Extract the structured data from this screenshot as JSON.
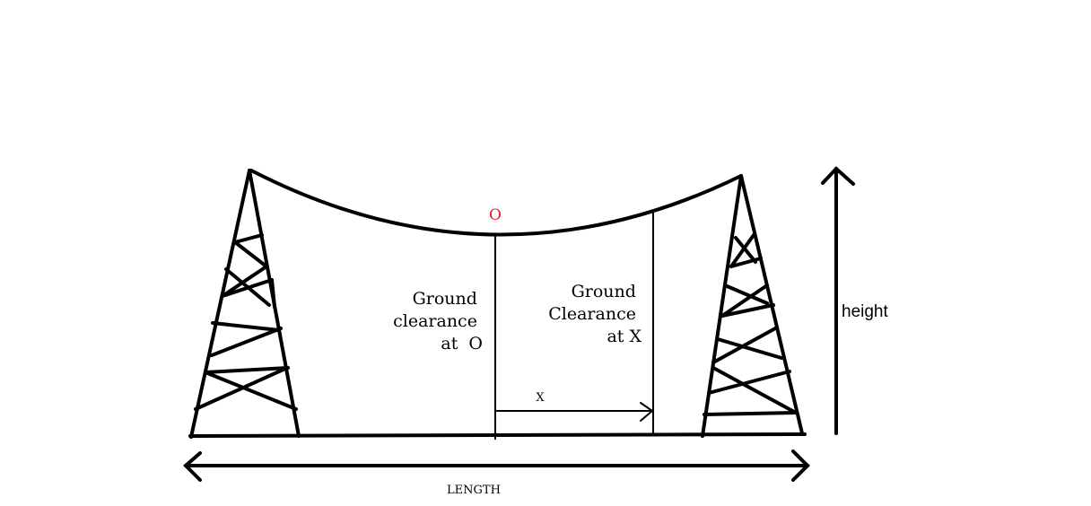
{
  "diagram": {
    "point_label": "O",
    "clearance_o_lines": [
      "Ground",
      "clearance",
      "at  O"
    ],
    "clearance_x_lines": [
      "Ground",
      "Clearance",
      "at X"
    ],
    "x_label": "X",
    "height_label": "height",
    "length_label": "LENGTH",
    "colors": {
      "ink": "#000000",
      "accent": "#e8192c"
    }
  }
}
